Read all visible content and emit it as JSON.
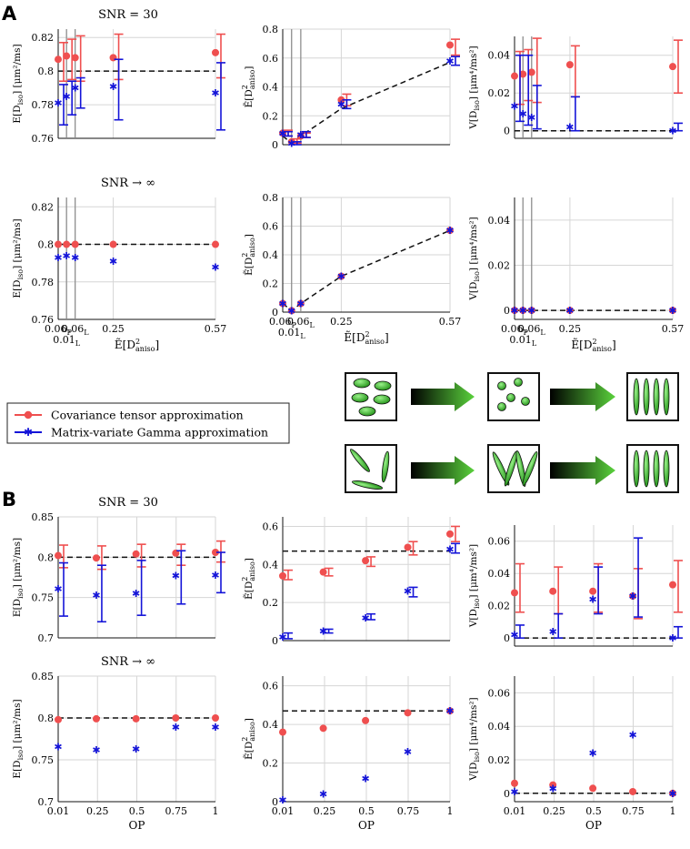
{
  "figure": {
    "panel_labels": [
      "A",
      "B"
    ],
    "snr_titles": {
      "finite": "SNR = 30",
      "infinite": "SNR → ∞"
    },
    "colors": {
      "red": "#ef4f4f",
      "blue": "#1414d8",
      "dash": "#111111",
      "grid": "#d6d6d6"
    }
  },
  "legend": {
    "entries": [
      {
        "label": "Covariance tensor approximation",
        "color": "#ef4f4f",
        "marker": "circle"
      },
      {
        "label": "Matrix-variate Gamma approximation",
        "color": "#1414d8",
        "marker": "star"
      }
    ]
  },
  "cartoon": {
    "description_icons": [
      "disc-ellipses-icon",
      "small-spheres-icon",
      "aligned-sticks-icon",
      "random-sticks-icon",
      "fanned-sticks-icon",
      "aligned-sticks-icon"
    ],
    "arrow_color": "#5ad23c"
  },
  "axis_text": {
    "A_xticks": [
      "0.06",
      "0.01",
      "0.06",
      "0.25",
      "0.57"
    ],
    "A_xtick_subs": [
      "P",
      "L",
      "L",
      "",
      ""
    ],
    "A_xlabel_main": "Ẽ[D",
    "A_xlabel_sup": "2",
    "A_xlabel_sub": "aniso",
    "A_xlabel_end": "]",
    "B_xlabel": "OP",
    "ylabel_mean": "E[D",
    "ylabel_mean_sub": "iso",
    "ylabel_mean_unit": "] [μm²/ms]",
    "ylabel_aniso": "Ẽ[D",
    "ylabel_aniso_sup": "2",
    "ylabel_aniso_sub": "aniso",
    "ylabel_aniso_end": "]",
    "ylabel_var": "V[D",
    "ylabel_var_sub": "iso",
    "ylabel_var_unit": "] [μm⁴/ms²]"
  },
  "chart_data": [
    {
      "panel": "A",
      "row": "SNR = 30",
      "type": "scatter",
      "ylabel": "E[Diso] [µm²/ms]",
      "x": [
        0.06,
        0.01,
        0.06,
        0.25,
        0.57
      ],
      "x_labels": [
        "0.06P",
        "0.01L",
        "0.06L",
        "0.25",
        "0.57"
      ],
      "ylim": [
        0.76,
        0.825
      ],
      "yticks": [
        0.76,
        0.78,
        0.8,
        0.82
      ],
      "ytick_labels": [
        "0.76",
        "0.78",
        "0.8",
        "0.82"
      ],
      "reference": 0.8,
      "series": [
        {
          "name": "Covariance tensor approximation",
          "values": [
            0.807,
            0.809,
            0.808,
            0.808,
            0.811
          ],
          "err_low": [
            0.794,
            0.795,
            0.794,
            0.795,
            0.796
          ],
          "err_high": [
            0.817,
            0.819,
            0.821,
            0.822,
            0.822
          ]
        },
        {
          "name": "Matrix-variate Gamma approximation",
          "values": [
            0.781,
            0.785,
            0.79,
            0.791,
            0.787
          ],
          "err_low": [
            0.768,
            0.774,
            0.778,
            0.771,
            0.765
          ],
          "err_high": [
            0.792,
            0.794,
            0.796,
            0.807,
            0.805
          ]
        }
      ]
    },
    {
      "panel": "A",
      "row": "SNR = 30",
      "type": "scatter",
      "ylabel": "Ẽ[D²aniso]",
      "x": [
        0.06,
        0.01,
        0.06,
        0.25,
        0.57
      ],
      "x_labels": [
        "0.06P",
        "0.01L",
        "0.06L",
        "0.25",
        "0.57"
      ],
      "ylim": [
        0,
        0.8
      ],
      "yticks": [
        0,
        0.2,
        0.4,
        0.6,
        0.8
      ],
      "ytick_labels": [
        "0",
        "0.2",
        "0.4",
        "0.6",
        "0.8"
      ],
      "reference_points": [
        [
          0.06,
          0.06
        ],
        [
          0.01,
          0.01
        ],
        [
          0.06,
          0.06
        ],
        [
          0.25,
          0.25
        ],
        [
          0.57,
          0.57
        ]
      ],
      "series": [
        {
          "name": "Covariance tensor approximation",
          "values": [
            0.08,
            0.02,
            0.06,
            0.31,
            0.69
          ],
          "err_low": [
            0.06,
            0.01,
            0.05,
            0.27,
            0.62
          ],
          "err_high": [
            0.1,
            0.04,
            0.08,
            0.35,
            0.73
          ]
        },
        {
          "name": "Matrix-variate Gamma approximation",
          "values": [
            0.08,
            0.01,
            0.07,
            0.28,
            0.58
          ],
          "err_low": [
            0.06,
            0.0,
            0.05,
            0.25,
            0.55
          ],
          "err_high": [
            0.09,
            0.02,
            0.09,
            0.31,
            0.61
          ]
        }
      ]
    },
    {
      "panel": "A",
      "row": "SNR = 30",
      "type": "scatter",
      "ylabel": "V[Diso] [µm⁴/ms²]",
      "x": [
        0.06,
        0.01,
        0.06,
        0.25,
        0.57
      ],
      "x_labels": [
        "0.06P",
        "0.01L",
        "0.06L",
        "0.25",
        "0.57"
      ],
      "ylim": [
        -0.004,
        0.05
      ],
      "yticks": [
        0,
        0.02,
        0.04
      ],
      "ytick_labels": [
        "0",
        "0.02",
        "0.04"
      ],
      "reference": 0.0,
      "series": [
        {
          "name": "Covariance tensor approximation",
          "values": [
            0.029,
            0.03,
            0.031,
            0.035,
            0.034
          ],
          "err_low": [
            0.014,
            0.016,
            0.015,
            0.018,
            0.02
          ],
          "err_high": [
            0.042,
            0.043,
            0.049,
            0.045,
            0.048
          ]
        },
        {
          "name": "Matrix-variate Gamma approximation",
          "values": [
            0.013,
            0.009,
            0.007,
            0.002,
            0.0
          ],
          "err_low": [
            0.005,
            0.003,
            0.001,
            0.0,
            0.0
          ],
          "err_high": [
            0.04,
            0.04,
            0.024,
            0.018,
            0.004
          ]
        }
      ]
    },
    {
      "panel": "A",
      "row": "SNR → ∞",
      "type": "scatter",
      "ylabel": "E[Diso] [µm²/ms]",
      "x": [
        0.06,
        0.01,
        0.06,
        0.25,
        0.57
      ],
      "x_labels": [
        "0.06P",
        "0.01L",
        "0.06L",
        "0.25",
        "0.57"
      ],
      "ylim": [
        0.76,
        0.825
      ],
      "yticks": [
        0.76,
        0.78,
        0.8,
        0.82
      ],
      "ytick_labels": [
        "0.76",
        "0.78",
        "0.8",
        "0.82"
      ],
      "reference": 0.8,
      "series": [
        {
          "name": "Covariance tensor approximation",
          "values": [
            0.8,
            0.8,
            0.8,
            0.8,
            0.8
          ]
        },
        {
          "name": "Matrix-variate Gamma approximation",
          "values": [
            0.793,
            0.794,
            0.793,
            0.791,
            0.788
          ]
        }
      ]
    },
    {
      "panel": "A",
      "row": "SNR → ∞",
      "type": "scatter",
      "ylabel": "Ẽ[D²aniso]",
      "x": [
        0.06,
        0.01,
        0.06,
        0.25,
        0.57
      ],
      "x_labels": [
        "0.06P",
        "0.01L",
        "0.06L",
        "0.25",
        "0.57"
      ],
      "ylim": [
        0,
        0.8
      ],
      "yticks": [
        0,
        0.2,
        0.4,
        0.6,
        0.8
      ],
      "ytick_labels": [
        "0",
        "0.2",
        "0.4",
        "0.6",
        "0.8"
      ],
      "reference_points": [
        [
          0.06,
          0.06
        ],
        [
          0.01,
          0.01
        ],
        [
          0.06,
          0.06
        ],
        [
          0.25,
          0.25
        ],
        [
          0.57,
          0.57
        ]
      ],
      "series": [
        {
          "name": "Covariance tensor approximation",
          "values": [
            0.06,
            0.01,
            0.06,
            0.25,
            0.57
          ]
        },
        {
          "name": "Matrix-variate Gamma approximation",
          "values": [
            0.06,
            0.01,
            0.06,
            0.25,
            0.57
          ]
        }
      ]
    },
    {
      "panel": "A",
      "row": "SNR → ∞",
      "type": "scatter",
      "ylabel": "V[Diso] [µm⁴/ms²]",
      "x": [
        0.06,
        0.01,
        0.06,
        0.25,
        0.57
      ],
      "x_labels": [
        "0.06P",
        "0.01L",
        "0.06L",
        "0.25",
        "0.57"
      ],
      "ylim": [
        -0.004,
        0.05
      ],
      "yticks": [
        0,
        0.02,
        0.04
      ],
      "ytick_labels": [
        "0",
        "0.02",
        "0.04"
      ],
      "reference": 0.0,
      "series": [
        {
          "name": "Covariance tensor approximation",
          "values": [
            0.0,
            0.0,
            0.0,
            0.0,
            0.0
          ]
        },
        {
          "name": "Matrix-variate Gamma approximation",
          "values": [
            0.0,
            0.0,
            0.0,
            0.0,
            0.0
          ]
        }
      ]
    },
    {
      "panel": "B",
      "row": "SNR = 30",
      "type": "scatter",
      "xlabel": "OP",
      "ylabel": "E[Diso] [µm²/ms]",
      "x": [
        0.01,
        0.25,
        0.5,
        0.75,
        1
      ],
      "x_labels": [
        "0.01",
        "0.25",
        "0.5",
        "0.75",
        "1"
      ],
      "ylim": [
        0.7,
        0.85
      ],
      "yticks": [
        0.7,
        0.75,
        0.8,
        0.85
      ],
      "ytick_labels": [
        "0.7",
        "0.75",
        "0.8",
        "0.85"
      ],
      "reference": 0.8,
      "series": [
        {
          "name": "Covariance tensor approximation",
          "values": [
            0.802,
            0.799,
            0.804,
            0.805,
            0.806
          ],
          "err_low": [
            0.787,
            0.785,
            0.788,
            0.79,
            0.794
          ],
          "err_high": [
            0.815,
            0.814,
            0.816,
            0.816,
            0.82
          ]
        },
        {
          "name": "Matrix-variate Gamma approximation",
          "values": [
            0.761,
            0.753,
            0.755,
            0.777,
            0.778
          ],
          "err_low": [
            0.727,
            0.72,
            0.728,
            0.742,
            0.756
          ],
          "err_high": [
            0.793,
            0.79,
            0.796,
            0.808,
            0.806
          ]
        }
      ]
    },
    {
      "panel": "B",
      "row": "SNR = 30",
      "type": "scatter",
      "xlabel": "OP",
      "ylabel": "Ẽ[D²aniso]",
      "x": [
        0.01,
        0.25,
        0.5,
        0.75,
        1
      ],
      "x_labels": [
        "0.01",
        "0.25",
        "0.5",
        "0.75",
        "1"
      ],
      "ylim": [
        0,
        0.65
      ],
      "yticks": [
        0,
        0.2,
        0.4,
        0.6
      ],
      "ytick_labels": [
        "0",
        "0.2",
        "0.4",
        "0.6"
      ],
      "reference": 0.47,
      "series": [
        {
          "name": "Covariance tensor approximation",
          "values": [
            0.34,
            0.36,
            0.42,
            0.49,
            0.56
          ],
          "err_low": [
            0.32,
            0.34,
            0.39,
            0.45,
            0.52
          ],
          "err_high": [
            0.37,
            0.38,
            0.44,
            0.52,
            0.6
          ]
        },
        {
          "name": "Matrix-variate Gamma approximation",
          "values": [
            0.02,
            0.05,
            0.12,
            0.26,
            0.48
          ],
          "err_low": [
            0.01,
            0.04,
            0.11,
            0.23,
            0.46
          ],
          "err_high": [
            0.04,
            0.06,
            0.14,
            0.28,
            0.51
          ]
        }
      ]
    },
    {
      "panel": "B",
      "row": "SNR = 30",
      "type": "scatter",
      "xlabel": "OP",
      "ylabel": "V[Diso] [µm⁴/ms²]",
      "x": [
        0.01,
        0.25,
        0.5,
        0.75,
        1
      ],
      "x_labels": [
        "0.01",
        "0.25",
        "0.5",
        "0.75",
        "1"
      ],
      "ylim": [
        -0.005,
        0.07
      ],
      "yticks": [
        0,
        0.02,
        0.04,
        0.06
      ],
      "ytick_labels": [
        "0",
        "0.02",
        "0.04",
        "0.06"
      ],
      "reference": 0.0,
      "series": [
        {
          "name": "Covariance tensor approximation",
          "values": [
            0.028,
            0.029,
            0.029,
            0.026,
            0.033
          ],
          "err_low": [
            0.016,
            0.015,
            0.016,
            0.012,
            0.016
          ],
          "err_high": [
            0.046,
            0.044,
            0.046,
            0.043,
            0.048
          ]
        },
        {
          "name": "Matrix-variate Gamma approximation",
          "values": [
            0.002,
            0.004,
            0.024,
            0.026,
            0.0
          ],
          "err_low": [
            0.0,
            0.0,
            0.015,
            0.013,
            0.0
          ],
          "err_high": [
            0.008,
            0.015,
            0.044,
            0.062,
            0.007
          ]
        }
      ]
    },
    {
      "panel": "B",
      "row": "SNR → ∞",
      "type": "scatter",
      "xlabel": "OP",
      "ylabel": "E[Diso] [µm²/ms]",
      "x": [
        0.01,
        0.25,
        0.5,
        0.75,
        1
      ],
      "x_labels": [
        "0.01",
        "0.25",
        "0.5",
        "0.75",
        "1"
      ],
      "ylim": [
        0.7,
        0.85
      ],
      "yticks": [
        0.7,
        0.75,
        0.8,
        0.85
      ],
      "ytick_labels": [
        "0.7",
        "0.75",
        "0.8",
        "0.85"
      ],
      "reference": 0.8,
      "series": [
        {
          "name": "Covariance tensor approximation",
          "values": [
            0.798,
            0.799,
            0.799,
            0.8,
            0.8
          ]
        },
        {
          "name": "Matrix-variate Gamma approximation",
          "values": [
            0.766,
            0.762,
            0.763,
            0.789,
            0.789
          ]
        }
      ]
    },
    {
      "panel": "B",
      "row": "SNR → ∞",
      "type": "scatter",
      "xlabel": "OP",
      "ylabel": "Ẽ[D²aniso]",
      "x": [
        0.01,
        0.25,
        0.5,
        0.75,
        1
      ],
      "x_labels": [
        "0.01",
        "0.25",
        "0.5",
        "0.75",
        "1"
      ],
      "ylim": [
        0,
        0.65
      ],
      "yticks": [
        0,
        0.2,
        0.4,
        0.6
      ],
      "ytick_labels": [
        "0",
        "0.2",
        "0.4",
        "0.6"
      ],
      "reference": 0.47,
      "series": [
        {
          "name": "Covariance tensor approximation",
          "values": [
            0.36,
            0.38,
            0.42,
            0.46,
            0.47
          ]
        },
        {
          "name": "Matrix-variate Gamma approximation",
          "values": [
            0.01,
            0.04,
            0.12,
            0.26,
            0.47
          ]
        }
      ]
    },
    {
      "panel": "B",
      "row": "SNR → ∞",
      "type": "scatter",
      "xlabel": "OP",
      "ylabel": "V[Diso] [µm⁴/ms²]",
      "x": [
        0.01,
        0.25,
        0.5,
        0.75,
        1
      ],
      "x_labels": [
        "0.01",
        "0.25",
        "0.5",
        "0.75",
        "1"
      ],
      "ylim": [
        -0.005,
        0.07
      ],
      "yticks": [
        0,
        0.02,
        0.04,
        0.06
      ],
      "ytick_labels": [
        "0",
        "0.02",
        "0.04",
        "0.06"
      ],
      "reference": 0.0,
      "series": [
        {
          "name": "Covariance tensor approximation",
          "values": [
            0.006,
            0.005,
            0.003,
            0.001,
            0.0
          ]
        },
        {
          "name": "Matrix-variate Gamma approximation",
          "values": [
            0.001,
            0.003,
            0.024,
            0.035,
            0.0
          ]
        }
      ]
    }
  ]
}
